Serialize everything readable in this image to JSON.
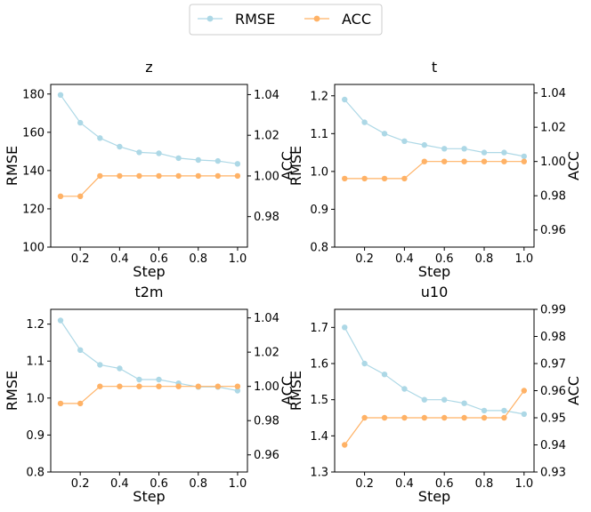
{
  "legend": {
    "items": [
      "RMSE",
      "ACC"
    ]
  },
  "colors": {
    "rmse": "#add8e6",
    "acc": "#ffb266",
    "axis": "#000000",
    "legend_border": "#cccccc"
  },
  "chart_data": [
    {
      "type": "line",
      "title": "z",
      "xlabel": "Step",
      "ylabel_left": "RMSE",
      "ylabel_right": "ACC",
      "x": [
        0.1,
        0.2,
        0.3,
        0.4,
        0.5,
        0.6,
        0.7,
        0.8,
        0.9,
        1.0
      ],
      "xlim": [
        0.05,
        1.05
      ],
      "xticks": [
        "0.2",
        "0.4",
        "0.6",
        "0.8",
        "1.0"
      ],
      "series": [
        {
          "name": "RMSE",
          "axis": "left",
          "values": [
            179.5,
            165,
            157,
            152.5,
            149.5,
            149,
            146.5,
            145.5,
            145,
            143.5
          ]
        },
        {
          "name": "ACC",
          "axis": "right",
          "values": [
            0.99,
            0.99,
            1.0,
            1.0,
            1.0,
            1.0,
            1.0,
            1.0,
            1.0,
            1.0
          ]
        }
      ],
      "ylim_left": [
        100,
        185
      ],
      "yticks_left": [
        "100",
        "120",
        "140",
        "160",
        "180"
      ],
      "ylim_right": [
        0.965,
        1.045
      ],
      "yticks_right": [
        "0.98",
        "1.00",
        "1.02",
        "1.04"
      ]
    },
    {
      "type": "line",
      "title": "t",
      "xlabel": "Step",
      "ylabel_left": "RMSE",
      "ylabel_right": "ACC",
      "x": [
        0.1,
        0.2,
        0.3,
        0.4,
        0.5,
        0.6,
        0.7,
        0.8,
        0.9,
        1.0
      ],
      "xlim": [
        0.05,
        1.05
      ],
      "xticks": [
        "0.2",
        "0.4",
        "0.6",
        "0.8",
        "1.0"
      ],
      "series": [
        {
          "name": "RMSE",
          "axis": "left",
          "values": [
            1.19,
            1.13,
            1.1,
            1.08,
            1.07,
            1.06,
            1.06,
            1.05,
            1.05,
            1.04
          ]
        },
        {
          "name": "ACC",
          "axis": "right",
          "values": [
            0.99,
            0.99,
            0.99,
            0.99,
            1.0,
            1.0,
            1.0,
            1.0,
            1.0,
            1.0
          ]
        }
      ],
      "ylim_left": [
        0.8,
        1.23
      ],
      "yticks_left": [
        "0.8",
        "0.9",
        "1.0",
        "1.1",
        "1.2"
      ],
      "ylim_right": [
        0.95,
        1.045
      ],
      "yticks_right": [
        "0.96",
        "0.98",
        "1.00",
        "1.02",
        "1.04"
      ]
    },
    {
      "type": "line",
      "title": "t2m",
      "xlabel": "Step",
      "ylabel_left": "RMSE",
      "ylabel_right": "ACC",
      "x": [
        0.1,
        0.2,
        0.3,
        0.4,
        0.5,
        0.6,
        0.7,
        0.8,
        0.9,
        1.0
      ],
      "xlim": [
        0.05,
        1.05
      ],
      "xticks": [
        "0.2",
        "0.4",
        "0.6",
        "0.8",
        "1.0"
      ],
      "series": [
        {
          "name": "RMSE",
          "axis": "left",
          "values": [
            1.21,
            1.13,
            1.09,
            1.08,
            1.05,
            1.05,
            1.04,
            1.03,
            1.03,
            1.02
          ]
        },
        {
          "name": "ACC",
          "axis": "right",
          "values": [
            0.99,
            0.99,
            1.0,
            1.0,
            1.0,
            1.0,
            1.0,
            1.0,
            1.0,
            1.0
          ]
        }
      ],
      "ylim_left": [
        0.8,
        1.24
      ],
      "yticks_left": [
        "0.8",
        "0.9",
        "1.0",
        "1.1",
        "1.2"
      ],
      "ylim_right": [
        0.95,
        1.045
      ],
      "yticks_right": [
        "0.96",
        "0.98",
        "1.00",
        "1.02",
        "1.04"
      ]
    },
    {
      "type": "line",
      "title": "u10",
      "xlabel": "Step",
      "ylabel_left": "RMSE",
      "ylabel_right": "ACC",
      "x": [
        0.1,
        0.2,
        0.3,
        0.4,
        0.5,
        0.6,
        0.7,
        0.8,
        0.9,
        1.0
      ],
      "xlim": [
        0.05,
        1.05
      ],
      "xticks": [
        "0.2",
        "0.4",
        "0.6",
        "0.8",
        "1.0"
      ],
      "series": [
        {
          "name": "RMSE",
          "axis": "left",
          "values": [
            1.7,
            1.6,
            1.57,
            1.53,
            1.5,
            1.5,
            1.49,
            1.47,
            1.47,
            1.46
          ]
        },
        {
          "name": "ACC",
          "axis": "right",
          "values": [
            0.94,
            0.95,
            0.95,
            0.95,
            0.95,
            0.95,
            0.95,
            0.95,
            0.95,
            0.96
          ]
        }
      ],
      "ylim_left": [
        1.3,
        1.75
      ],
      "yticks_left": [
        "1.3",
        "1.4",
        "1.5",
        "1.6",
        "1.7"
      ],
      "ylim_right": [
        0.93,
        0.99
      ],
      "yticks_right": [
        "0.93",
        "0.94",
        "0.95",
        "0.96",
        "0.97",
        "0.98",
        "0.99"
      ]
    }
  ]
}
